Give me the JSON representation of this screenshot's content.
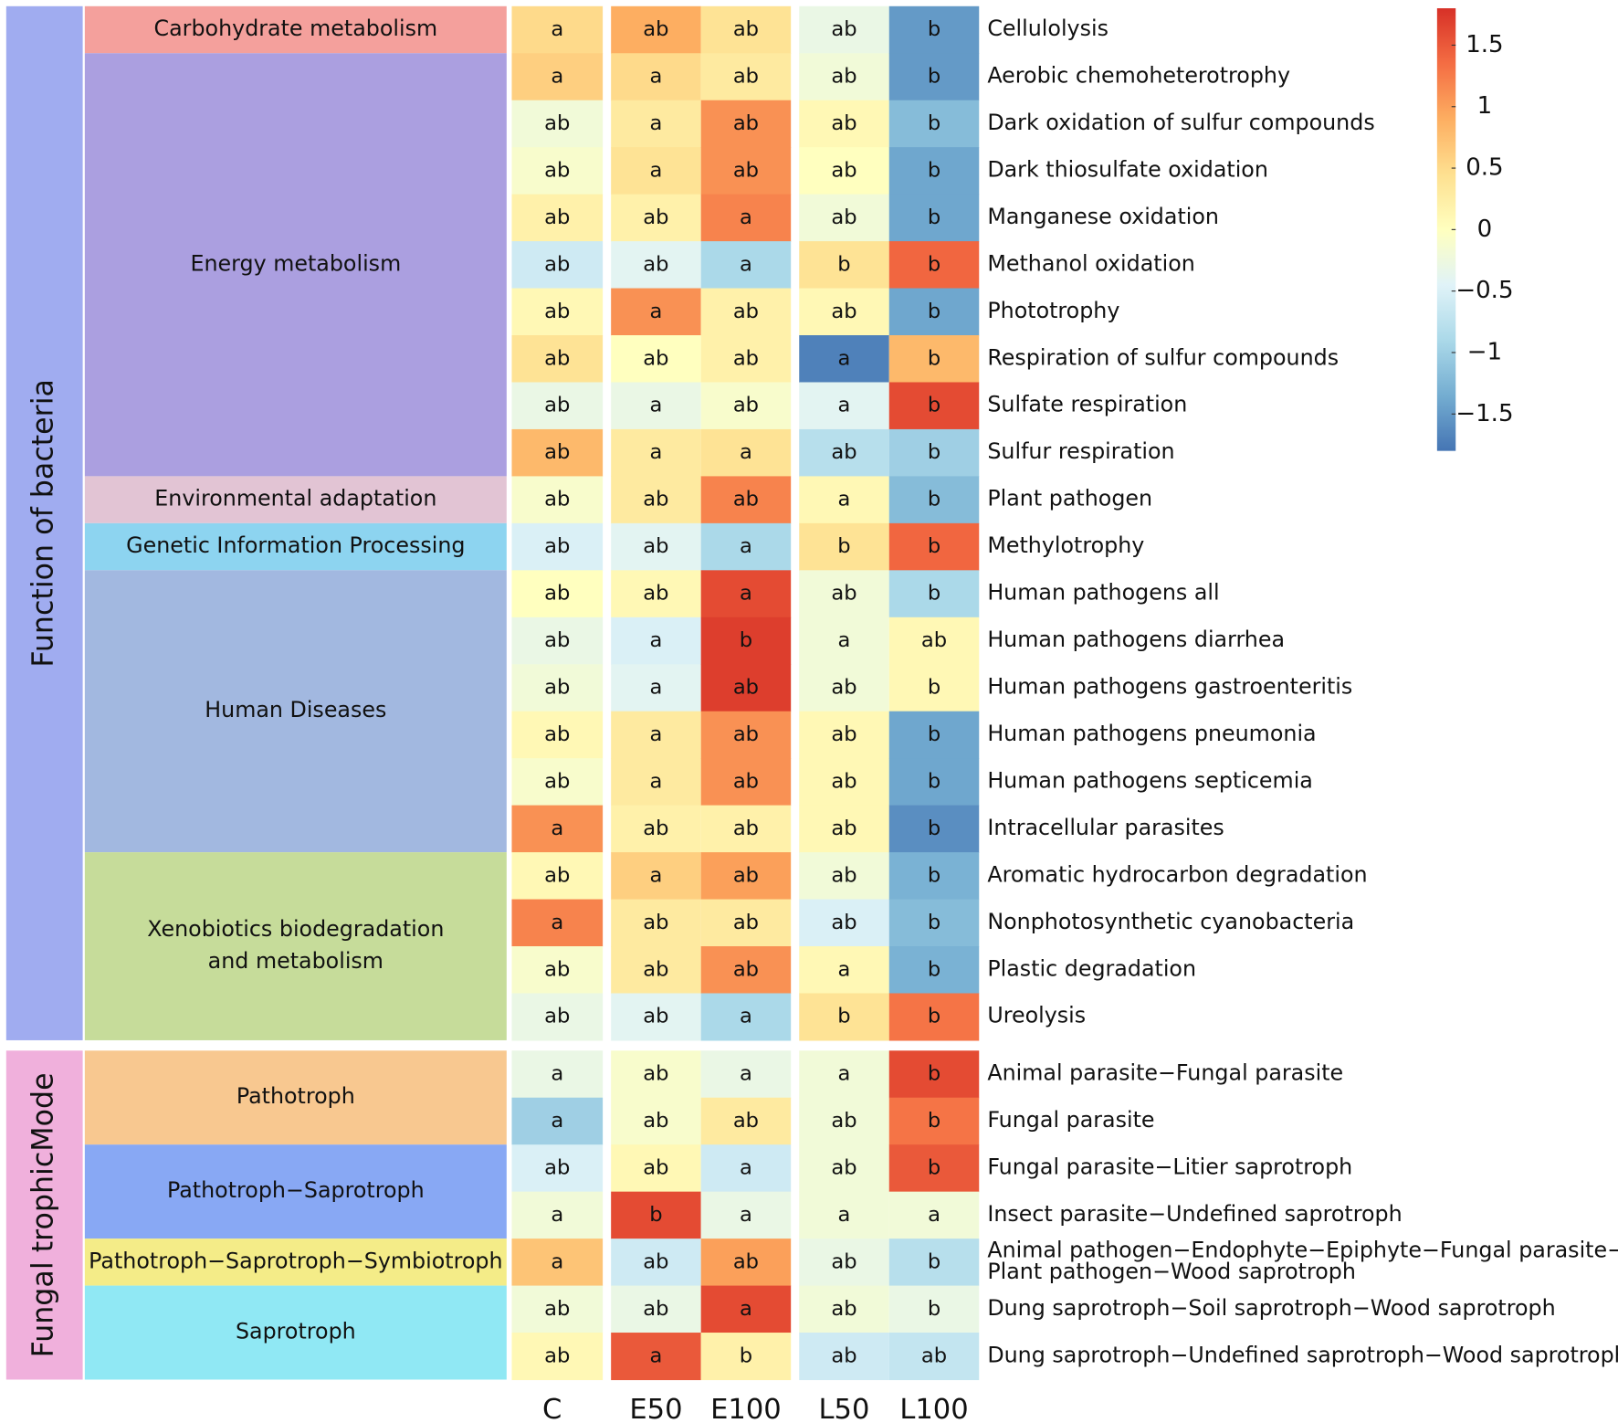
{
  "chart_data": {
    "type": "heatmap",
    "columns": [
      "C",
      "E50",
      "E100",
      "L50",
      "L100"
    ],
    "clim": [
      -1.8,
      1.8
    ],
    "colorbar_ticks": [
      {
        "value": -1.5,
        "label": "−1.5"
      },
      {
        "value": -1,
        "label": "−1"
      },
      {
        "value": -0.5,
        "label": "−0.5"
      },
      0,
      0.5,
      1,
      1.5
    ],
    "colors": [
      "#4575b4",
      "#74add1",
      "#abd9e9",
      "#e0f3f8",
      "#ffffbf",
      "#fee090",
      "#fdae61",
      "#f46d43",
      "#d73027"
    ],
    "sections": [
      {
        "name": "Function of bacteria",
        "color": "#a0acf0",
        "text_color": "#2a2a9a",
        "groups": [
          {
            "name": "Carbohydrate metabolism",
            "color": "#f4a09c",
            "text_color": "#b04848",
            "rows": [
              {
                "name": "Cellulolysis",
                "values": [
                  0.5,
                  0.9,
                  0.4,
                  -0.3,
                  -1.5
                ],
                "letters": [
                  "a",
                  "ab",
                  "ab",
                  "ab",
                  "b"
                ]
              }
            ]
          },
          {
            "name": "Energy metabolism",
            "color": "#ab9fe0",
            "text_color": "#2d2a6e",
            "rows": [
              {
                "name": "Aerobic chemoheterotrophy",
                "values": [
                  0.6,
                  0.5,
                  0.3,
                  -0.2,
                  -1.5
                ],
                "letters": [
                  "a",
                  "a",
                  "ab",
                  "ab",
                  "b"
                ]
              },
              {
                "name": "Dark oxidation of sulfur compounds",
                "values": [
                  -0.2,
                  0.3,
                  1.1,
                  0.1,
                  -1.2
                ],
                "letters": [
                  "ab",
                  "a",
                  "ab",
                  "ab",
                  "b"
                ]
              },
              {
                "name": "Dark thiosulfate oxidation",
                "values": [
                  -0.1,
                  0.4,
                  1.1,
                  0,
                  -1.4
                ],
                "letters": [
                  "ab",
                  "a",
                  "ab",
                  "ab",
                  "b"
                ]
              },
              {
                "name": "Manganese oxidation",
                "values": [
                  0.2,
                  0.2,
                  1.2,
                  -0.2,
                  -1.4
                ],
                "letters": [
                  "ab",
                  "ab",
                  "a",
                  "ab",
                  "b"
                ]
              },
              {
                "name": "Methanol oxidation",
                "values": [
                  -0.6,
                  -0.4,
                  -0.9,
                  0.4,
                  1.4
                ],
                "letters": [
                  "ab",
                  "ab",
                  "a",
                  "b",
                  "b"
                ]
              },
              {
                "name": "Phototrophy",
                "values": [
                  0.1,
                  1.1,
                  0.2,
                  0.1,
                  -1.4
                ],
                "letters": [
                  "ab",
                  "a",
                  "ab",
                  "ab",
                  "b"
                ]
              },
              {
                "name": "Respiration of sulfur compounds",
                "values": [
                  0.4,
                  0,
                  0.2,
                  -1.7,
                  0.8
                ],
                "letters": [
                  "ab",
                  "ab",
                  "ab",
                  "a",
                  "b"
                ]
              },
              {
                "name": "Sulfate respiration",
                "values": [
                  -0.3,
                  -0.3,
                  -0.1,
                  -0.4,
                  1.6
                ],
                "letters": [
                  "ab",
                  "a",
                  "ab",
                  "a",
                  "b"
                ]
              },
              {
                "name": "Sulfur respiration",
                "values": [
                  0.8,
                  0.3,
                  0.4,
                  -0.8,
                  -1.0
                ],
                "letters": [
                  "ab",
                  "a",
                  "a",
                  "ab",
                  "b"
                ]
              }
            ]
          },
          {
            "name": "Environmental adaptation",
            "color": "#e2c4d4",
            "text_color": "#7a3a50",
            "rows": [
              {
                "name": "Plant pathogen",
                "values": [
                  -0.1,
                  0.3,
                  1.2,
                  0.1,
                  -1.2
                ],
                "letters": [
                  "ab",
                  "ab",
                  "ab",
                  "a",
                  "b"
                ]
              }
            ]
          },
          {
            "name": "Genetic Information Processing",
            "color": "#8dd4f0",
            "text_color": "#22507a",
            "rows": [
              {
                "name": "Methylotrophy",
                "values": [
                  -0.5,
                  -0.4,
                  -0.9,
                  0.4,
                  1.4
                ],
                "letters": [
                  "ab",
                  "ab",
                  "a",
                  "b",
                  "b"
                ]
              }
            ]
          },
          {
            "name": "Human Diseases",
            "color": "#a2b8e0",
            "text_color": "#5a3a9a",
            "rows": [
              {
                "name": "Human pathogens all",
                "values": [
                  0,
                  0.1,
                  1.6,
                  -0.2,
                  -0.9
                ],
                "letters": [
                  "ab",
                  "ab",
                  "a",
                  "ab",
                  "b"
                ]
              },
              {
                "name": "Human pathogens diarrhea",
                "values": [
                  -0.3,
                  -0.5,
                  1.7,
                  -0.2,
                  0.1
                ],
                "letters": [
                  "ab",
                  "a",
                  "b",
                  "a",
                  "ab"
                ]
              },
              {
                "name": "Human pathogens gastroenteritis",
                "values": [
                  -0.2,
                  -0.4,
                  1.7,
                  -0.2,
                  0.1
                ],
                "letters": [
                  "ab",
                  "a",
                  "ab",
                  "ab",
                  "b"
                ]
              },
              {
                "name": "Human pathogens pneumonia",
                "values": [
                  0.1,
                  0.3,
                  1.1,
                  0.1,
                  -1.4
                ],
                "letters": [
                  "ab",
                  "a",
                  "ab",
                  "ab",
                  "b"
                ]
              },
              {
                "name": "Human pathogens septicemia",
                "values": [
                  -0.1,
                  0.3,
                  1.1,
                  0.1,
                  -1.4
                ],
                "letters": [
                  "ab",
                  "a",
                  "ab",
                  "ab",
                  "b"
                ]
              },
              {
                "name": "Intracellular parasites",
                "values": [
                  1.1,
                  0.2,
                  0.2,
                  0.1,
                  -1.6
                ],
                "letters": [
                  "a",
                  "ab",
                  "ab",
                  "ab",
                  "b"
                ]
              }
            ]
          },
          {
            "name": [
              "Xenobiotics biodegradation",
              "and metabolism"
            ],
            "color": "#c6dc9a",
            "text_color": "#2a8a2a",
            "rows": [
              {
                "name": "Aromatic hydrocarbon degradation",
                "values": [
                  0.1,
                  0.6,
                  1.0,
                  -0.2,
                  -1.3
                ],
                "letters": [
                  "ab",
                  "a",
                  "ab",
                  "ab",
                  "b"
                ]
              },
              {
                "name": "Nonphotosynthetic cyanobacteria",
                "values": [
                  1.2,
                  0.3,
                  0.3,
                  -0.5,
                  -1.2
                ],
                "letters": [
                  "a",
                  "ab",
                  "ab",
                  "ab",
                  "b"
                ]
              },
              {
                "name": "Plastic degradation",
                "values": [
                  -0.1,
                  0.3,
                  1.1,
                  0.1,
                  -1.3
                ],
                "letters": [
                  "ab",
                  "ab",
                  "ab",
                  "a",
                  "b"
                ]
              },
              {
                "name": "Ureolysis",
                "values": [
                  -0.3,
                  -0.4,
                  -0.9,
                  0.4,
                  1.3
                ],
                "letters": [
                  "ab",
                  "ab",
                  "a",
                  "b",
                  "b"
                ]
              }
            ]
          }
        ]
      },
      {
        "name": "Fungal trophicMode",
        "color": "#f0b0dc",
        "text_color": "#9a2a7a",
        "groups": [
          {
            "name": "Pathotroph",
            "color": "#f8c890",
            "text_color": "#d06020",
            "rows": [
              {
                "name": "Animal parasite−Fungal parasite",
                "values": [
                  -0.3,
                  -0.1,
                  -0.3,
                  -0.2,
                  1.6
                ],
                "letters": [
                  "a",
                  "ab",
                  "a",
                  "a",
                  "b"
                ]
              },
              {
                "name": "Fungal parasite",
                "values": [
                  -1.0,
                  -0.1,
                  0.3,
                  -0.2,
                  1.3
                ],
                "letters": [
                  "a",
                  "ab",
                  "ab",
                  "ab",
                  "b"
                ]
              }
            ]
          },
          {
            "name": "Pathotroph−Saprotroph",
            "color": "#88a8f4",
            "text_color": "#3060b0",
            "rows": [
              {
                "name": "Fungal parasite−Litier saprotroph",
                "values": [
                  -0.5,
                  0.1,
                  -0.6,
                  -0.2,
                  1.5
                ],
                "letters": [
                  "ab",
                  "ab",
                  "a",
                  "ab",
                  "b"
                ]
              },
              {
                "name": "Insect parasite−Undefined saprotroph",
                "values": [
                  -0.2,
                  1.6,
                  -0.3,
                  -0.2,
                  -0.2
                ],
                "letters": [
                  "a",
                  "b",
                  "a",
                  "a",
                  "a"
                ]
              }
            ]
          },
          {
            "name": "Pathotroph−Saprotroph−Symbiotroph",
            "color": "#f4ec88",
            "text_color": "#806000",
            "rows": [
              {
                "name": [
                  "Animal pathogen−Endophyte−Epiphyte−Fungal parasite−",
                  "Plant pathogen−Wood saprotroph"
                ],
                "values": [
                  0.7,
                  -0.6,
                  1.0,
                  -0.3,
                  -0.8
                ],
                "letters": [
                  "a",
                  "ab",
                  "ab",
                  "ab",
                  "b"
                ]
              }
            ]
          },
          {
            "name": "Saprotroph",
            "color": "#90e8f4",
            "text_color": "#107080",
            "rows": [
              {
                "name": "Dung saprotroph−Soil saprotroph−Wood saprotroph",
                "values": [
                  -0.2,
                  -0.3,
                  1.6,
                  -0.2,
                  -0.3
                ],
                "letters": [
                  "ab",
                  "ab",
                  "a",
                  "ab",
                  "b"
                ]
              },
              {
                "name": "Dung saprotroph−Undefined saprotroph−Wood saprotroph",
                "values": [
                  0.1,
                  1.5,
                  0.2,
                  -0.6,
                  -0.7
                ],
                "letters": [
                  "ab",
                  "a",
                  "b",
                  "ab",
                  "ab"
                ]
              }
            ]
          }
        ]
      }
    ]
  }
}
